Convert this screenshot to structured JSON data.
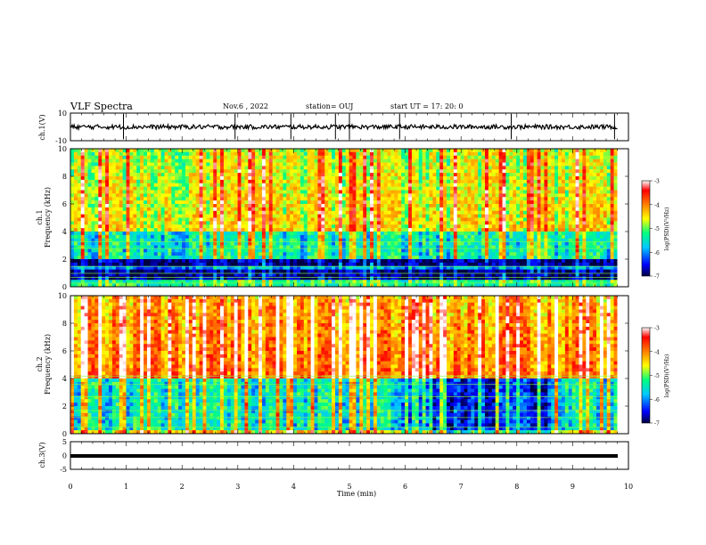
{
  "header": {
    "title": "VLF Spectra",
    "date": "Nov.6 , 2022",
    "station": "station= OUJ",
    "start_ut": "start UT = 17: 20: 0"
  },
  "colorbar": {
    "label": "log(PSD)(V²/Hz)",
    "ticks": [
      "-3",
      "-4",
      "-5",
      "-6",
      "-7"
    ],
    "colors": [
      "#000040",
      "#0000ff",
      "#00c8ff",
      "#00ff80",
      "#ffff00",
      "#ff8000",
      "#ff0000",
      "#ffffff"
    ]
  },
  "chart_data": [
    {
      "type": "line",
      "panel": "ch.1 waveform",
      "ylabel": "ch.1(V)",
      "yticks": [
        "10",
        "-10"
      ],
      "ylim": [
        -10,
        10
      ],
      "xlim": [
        0,
        10
      ],
      "baseline": 0.0,
      "spikes_min": [
        0.95,
        2.95,
        3.95,
        4.75,
        5.0,
        5.9,
        7.9,
        9.75
      ]
    },
    {
      "type": "heatmap",
      "panel": "ch.1 spectrogram",
      "ylabel_top": "ch.1",
      "ylabel": "Frequency (kHz)",
      "yticks": [
        "0",
        "2",
        "4",
        "6",
        "8",
        "10"
      ],
      "ylim": [
        0,
        10
      ],
      "xlim": [
        0,
        10
      ],
      "description_levels": {
        "low_band_kHz": [
          0,
          2
        ],
        "low_band_level": -7,
        "mid_band_level": -5.5,
        "high_band_level": -4.5
      }
    },
    {
      "type": "heatmap",
      "panel": "ch.2 spectrogram",
      "ylabel_top": "ch.2",
      "ylabel": "Frequency (kHz)",
      "yticks": [
        "0",
        "2",
        "4",
        "6",
        "8",
        "10"
      ],
      "ylim": [
        0,
        10
      ],
      "xlim": [
        0,
        10
      ],
      "description_levels": {
        "low_band_kHz": [
          0,
          4
        ],
        "low_band_level": -5.5,
        "high_band_level": -3.8
      }
    },
    {
      "type": "line",
      "panel": "ch.3 waveform",
      "ylabel": "ch.3(V)",
      "yticks": [
        "5",
        "0",
        "-5"
      ],
      "ylim": [
        -5,
        5
      ],
      "xlim": [
        0,
        10
      ],
      "baseline": 0.0
    }
  ],
  "xaxis": {
    "label": "Time (min)",
    "ticks": [
      "0",
      "1",
      "2",
      "3",
      "4",
      "5",
      "6",
      "7",
      "8",
      "9",
      "10"
    ],
    "range": [
      0,
      10
    ]
  }
}
